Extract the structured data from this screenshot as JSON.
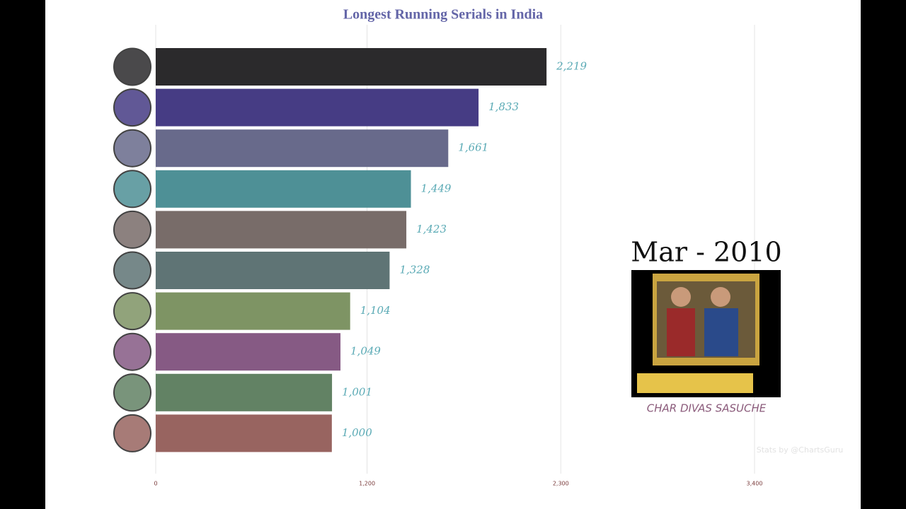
{
  "chart_data": {
    "type": "bar",
    "orientation": "horizontal",
    "title": "Longest Running Serials in India",
    "values": [
      2219,
      1833,
      1661,
      1449,
      1423,
      1328,
      1104,
      1049,
      1001,
      1000
    ],
    "value_labels": [
      "2,219",
      "1,833",
      "1,661",
      "1,449",
      "1,423",
      "1,328",
      "1,104",
      "1,049",
      "1,001",
      "1,000"
    ],
    "colors": [
      "#2b2a2c",
      "#463c84",
      "#686a8b",
      "#4e9096",
      "#786c69",
      "#5f7475",
      "#7e9464",
      "#865a84",
      "#628264",
      "#986460"
    ],
    "xlim": [
      0,
      3400
    ],
    "xticks": [
      0,
      {
        "value": 1200,
        "label": "1,200"
      },
      {
        "value": 2300,
        "label": "2,300"
      },
      {
        "value": 3400,
        "label": "3,400"
      }
    ],
    "grid": true,
    "date_label": "Mar - 2010",
    "featured_caption": "CHAR DIVAS SASUCHE",
    "credit": "Stats by @ChartsGuru"
  }
}
